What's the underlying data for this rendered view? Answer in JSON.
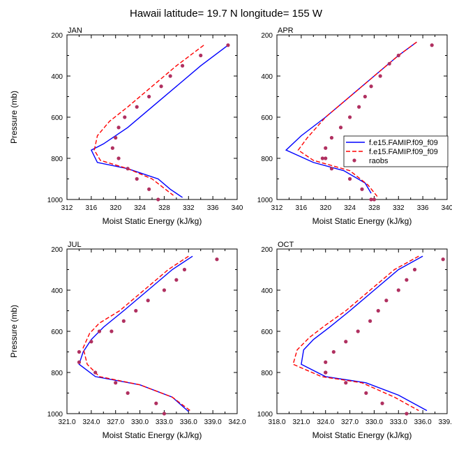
{
  "figure": {
    "title": "Hawaii  latitude= 19.7 N longitude= 155 W",
    "legend_entries": [
      "f.e15.FAMIP.f09_f09",
      "f.e15.FAMIP.f09_f09",
      "raobs"
    ]
  },
  "colors": {
    "model_solid": "#0000ff",
    "model_dashed": "#ff0000",
    "obs": "#b03060"
  },
  "chart_data": [
    {
      "type": "line",
      "panel": "JAN",
      "xlabel": "Moist Static Energy (kJ/kg)",
      "ylabel": "Pressure (mb)",
      "xlim": [
        312,
        340
      ],
      "ylim": [
        1000,
        200
      ],
      "y_reversed": true,
      "xticks": [
        312,
        316,
        320,
        324,
        328,
        332,
        336,
        340
      ],
      "xtick_labels": [
        "312",
        "316",
        "320",
        "324",
        "328",
        "332",
        "336",
        "340"
      ],
      "yticks": [
        200,
        400,
        600,
        800,
        1000
      ],
      "ytick_labels": [
        "200",
        "400",
        "600",
        "800",
        "1000"
      ],
      "grid": false,
      "series": [
        {
          "name": "f.e15.FAMIP.f09_f09",
          "style": "solid",
          "color": "#0000ff",
          "x": [
            338.5,
            334,
            330,
            326,
            322,
            318,
            316,
            317,
            322,
            327,
            329,
            331
          ],
          "y": [
            250,
            350,
            450,
            550,
            650,
            730,
            760,
            820,
            850,
            900,
            950,
            990
          ]
        },
        {
          "name": "f.e15.FAMIP.f09_f09",
          "style": "dashed",
          "color": "#ff0000",
          "x": [
            334.5,
            330,
            326,
            322,
            319,
            317,
            316.5,
            317.5,
            322,
            326,
            329.5
          ],
          "y": [
            250,
            350,
            450,
            550,
            620,
            690,
            760,
            810,
            850,
            900,
            980
          ]
        },
        {
          "name": "raobs",
          "style": "markers",
          "color": "#b03060",
          "x": [
            338.5,
            334,
            331,
            329,
            327.5,
            325.5,
            323.5,
            321.5,
            320.5,
            320,
            319.5,
            320.5,
            322,
            323.5,
            325.5,
            327
          ],
          "y": [
            250,
            300,
            350,
            400,
            450,
            500,
            550,
            600,
            650,
            700,
            750,
            800,
            850,
            900,
            950,
            1000
          ]
        }
      ]
    },
    {
      "type": "line",
      "panel": "APR",
      "xlabel": "Moist Static Energy (kJ/kg)",
      "ylabel": "",
      "xlim": [
        312,
        340
      ],
      "ylim": [
        1000,
        200
      ],
      "y_reversed": true,
      "xticks": [
        312,
        316,
        320,
        324,
        328,
        332,
        336,
        340
      ],
      "xtick_labels": [
        "312",
        "316",
        "320",
        "324",
        "328",
        "332",
        "336",
        "340"
      ],
      "yticks": [
        200,
        400,
        600,
        800,
        1000
      ],
      "ytick_labels": [
        "200",
        "400",
        "600",
        "800",
        "1000"
      ],
      "grid": false,
      "legend": "right",
      "series": [
        {
          "name": "f.e15.FAMIP.f09_f09",
          "style": "solid",
          "color": "#0000ff",
          "x": [
            335,
            332,
            328,
            324,
            320,
            316,
            313.5,
            318,
            323,
            326.5,
            327.5
          ],
          "y": [
            235,
            300,
            400,
            500,
            600,
            690,
            760,
            820,
            860,
            920,
            970
          ]
        },
        {
          "name": "f.e15.FAMIP.f09_f09",
          "style": "dashed",
          "color": "#ff0000",
          "x": [
            335,
            332,
            328,
            324,
            320,
            317,
            315.5,
            318,
            324,
            327,
            328.5
          ],
          "y": [
            235,
            300,
            400,
            500,
            600,
            700,
            760,
            810,
            860,
            930,
            985
          ]
        },
        {
          "name": "raobs",
          "style": "markers",
          "color": "#b03060",
          "x": [
            337.5,
            332,
            330.5,
            329,
            327.5,
            326.5,
            325.5,
            324,
            322.5,
            321,
            320,
            319.5,
            320,
            321,
            324,
            326,
            327.5,
            328
          ],
          "y": [
            250,
            300,
            340,
            400,
            450,
            500,
            550,
            600,
            650,
            700,
            750,
            800,
            800,
            850,
            900,
            950,
            1000,
            1000
          ]
        }
      ]
    },
    {
      "type": "line",
      "panel": "JUL",
      "xlabel": "Moist Static Energy (kJ/kg)",
      "ylabel": "Pressure (mb)",
      "xlim": [
        321,
        342
      ],
      "ylim": [
        1000,
        200
      ],
      "y_reversed": true,
      "xticks": [
        321,
        324,
        327,
        330,
        333,
        336,
        339,
        342
      ],
      "xtick_labels": [
        "321.0",
        "324.0",
        "327.0",
        "330.0",
        "333.0",
        "336.0",
        "339.0",
        "342.0"
      ],
      "yticks": [
        200,
        400,
        600,
        800,
        1000
      ],
      "ytick_labels": [
        "200",
        "400",
        "600",
        "800",
        "1000"
      ],
      "grid": false,
      "series": [
        {
          "name": "f.e15.FAMIP.f09_f09",
          "style": "solid",
          "color": "#0000ff",
          "x": [
            336.5,
            334,
            331,
            328,
            325.5,
            324,
            323,
            322.5,
            324.5,
            330,
            334,
            336
          ],
          "y": [
            235,
            300,
            400,
            500,
            580,
            640,
            700,
            760,
            820,
            860,
            920,
            990
          ]
        },
        {
          "name": "f.e15.FAMIP.f09_f09",
          "style": "dashed",
          "color": "#ff0000",
          "x": [
            336,
            333.5,
            330.5,
            327.5,
            325,
            323.8,
            323,
            323.5,
            325,
            330,
            334,
            336.2
          ],
          "y": [
            235,
            300,
            400,
            500,
            560,
            610,
            680,
            760,
            820,
            860,
            920,
            985
          ]
        },
        {
          "name": "raobs",
          "style": "markers",
          "color": "#b03060",
          "x": [
            339.5,
            335.5,
            334.5,
            333,
            331,
            329.5,
            328,
            326.5,
            325,
            324,
            322.5,
            322.5,
            324.5,
            327,
            328.5,
            332,
            333
          ],
          "y": [
            250,
            300,
            350,
            400,
            450,
            500,
            550,
            600,
            600,
            650,
            700,
            750,
            800,
            850,
            900,
            950,
            1000
          ]
        }
      ]
    },
    {
      "type": "line",
      "panel": "OCT",
      "xlabel": "Moist Static Energy (kJ/kg)",
      "ylabel": "",
      "xlim": [
        318,
        339
      ],
      "ylim": [
        1000,
        200
      ],
      "y_reversed": true,
      "xticks": [
        318,
        321,
        324,
        327,
        330,
        333,
        336,
        339
      ],
      "xtick_labels": [
        "318.0",
        "321.0",
        "324.0",
        "327.0",
        "330.0",
        "333.0",
        "336.0",
        "339.0"
      ],
      "yticks": [
        200,
        400,
        600,
        800,
        1000
      ],
      "ytick_labels": [
        "200",
        "400",
        "600",
        "800",
        "1000"
      ],
      "grid": false,
      "series": [
        {
          "name": "f.e15.FAMIP.f09_f09",
          "style": "solid",
          "color": "#0000ff",
          "x": [
            336,
            333,
            330,
            327,
            324.5,
            322.5,
            321.3,
            321,
            324,
            329,
            333,
            336.5
          ],
          "y": [
            235,
            300,
            400,
            500,
            580,
            640,
            690,
            760,
            820,
            850,
            910,
            985
          ]
        },
        {
          "name": "f.e15.FAMIP.f09_f09",
          "style": "dashed",
          "color": "#ff0000",
          "x": [
            335.5,
            332.5,
            329.5,
            326.5,
            324,
            322,
            320.5,
            320,
            323.5,
            328.5,
            332.5,
            335.5
          ],
          "y": [
            235,
            300,
            400,
            500,
            570,
            630,
            690,
            760,
            820,
            850,
            920,
            985
          ]
        },
        {
          "name": "raobs",
          "style": "markers",
          "color": "#b03060",
          "x": [
            338.5,
            335,
            334,
            333,
            331.5,
            330.5,
            329.5,
            328,
            326.5,
            325,
            324,
            324,
            324,
            326.5,
            329,
            331,
            334
          ],
          "y": [
            250,
            300,
            350,
            400,
            450,
            500,
            550,
            600,
            650,
            700,
            750,
            800,
            800,
            850,
            900,
            950,
            1000
          ]
        }
      ]
    }
  ]
}
